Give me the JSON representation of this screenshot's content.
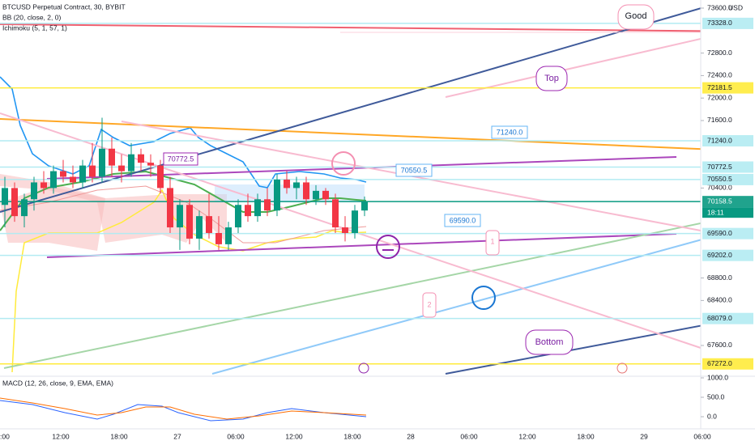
{
  "chart_data": {
    "type": "candlestick",
    "header": [
      "BTCUSD Perpetual Contract, 30, BYBIT",
      "BB (20, close, 2, 0)",
      "Ichimoku (5, 1, 57, 1)"
    ],
    "currency": "USD",
    "up_color": "#089981",
    "down_color": "#f23645",
    "open": [
      70100,
      70400,
      69900,
      70200,
      70500,
      70400,
      70700,
      70600,
      70500,
      70800,
      70600,
      71100,
      70800,
      70700,
      71000,
      70850,
      70800,
      70400,
      69700,
      70100,
      69500,
      69900,
      69600,
      69400,
      69700,
      70100,
      69900,
      70200,
      70000,
      70550,
      70400,
      70500,
      70200,
      70350,
      70200,
      69700,
      69600,
      70000
    ],
    "high": [
      70600,
      70500,
      70300,
      70600,
      70700,
      70800,
      70900,
      70800,
      70900,
      71200,
      71650,
      71300,
      71000,
      71200,
      71100,
      71000,
      70900,
      70600,
      70200,
      70200,
      70000,
      70300,
      69900,
      69800,
      70200,
      70300,
      70300,
      70400,
      70650,
      70700,
      70600,
      70600,
      70450,
      70400,
      70300,
      69900,
      70100,
      70250
    ],
    "low": [
      69700,
      69800,
      69700,
      70000,
      70300,
      70300,
      70500,
      70400,
      70400,
      70500,
      70500,
      70600,
      70500,
      70600,
      70700,
      70600,
      70300,
      69600,
      69300,
      69400,
      69300,
      69500,
      69300,
      69300,
      69600,
      69800,
      69800,
      69900,
      69900,
      70300,
      70200,
      70100,
      70100,
      70100,
      69600,
      69450,
      69500,
      69900
    ],
    "close": [
      70400,
      69900,
      70200,
      70500,
      70400,
      70700,
      70600,
      70500,
      70800,
      70600,
      71100,
      70800,
      70700,
      71000,
      70850,
      70800,
      70400,
      69700,
      70100,
      69500,
      69900,
      69600,
      69400,
      69700,
      70100,
      69900,
      70200,
      70000,
      70550,
      70400,
      70500,
      70200,
      70350,
      70200,
      69700,
      69600,
      70000,
      70158.5
    ],
    "ylim": [
      67096,
      73744
    ],
    "yticks": [
      {
        "value": 73600,
        "label": "73600.0"
      },
      {
        "value": 72800,
        "label": "72800.0"
      },
      {
        "value": 72400,
        "label": "72400.0"
      },
      {
        "value": 72000,
        "label": "72000.0"
      },
      {
        "value": 71600,
        "label": "71600.0"
      },
      {
        "value": 70400,
        "label": "70400.0"
      },
      {
        "value": 68800,
        "label": "68800.0"
      },
      {
        "value": 68400,
        "label": "68400.0"
      },
      {
        "value": 67600,
        "label": "67600.0"
      }
    ],
    "levels": [
      {
        "value": 73328,
        "label": "73328.0",
        "color": "#b2ebf2"
      },
      {
        "value": 72181.5,
        "label": "72181.5",
        "color": "#ffeb3b"
      },
      {
        "value": 71240,
        "label": "71240.0",
        "color": "#b2ebf2"
      },
      {
        "value": 70772.5,
        "label": "70772.5",
        "color": "#b2ebf2"
      },
      {
        "value": 70550.5,
        "label": "70550.5",
        "color": "#b2ebf2"
      },
      {
        "value": 70158.5,
        "label": "70158.5",
        "color": "#089981"
      },
      {
        "value": 69590,
        "label": "69590.0",
        "color": "#b2ebf2"
      },
      {
        "value": 69202,
        "label": "69202.0",
        "color": "#b2ebf2"
      },
      {
        "value": 68079,
        "label": "68079.0",
        "color": "#b2ebf2"
      },
      {
        "value": 67272,
        "label": "67272.0",
        "color": "#ffeb3b"
      }
    ],
    "countdown": "18:11",
    "time_labels": [
      ":00",
      "12:00",
      "18:00",
      "27",
      "06:00",
      "12:00",
      "18:00",
      "28",
      "06:00",
      "12:00",
      "18:00",
      "29",
      "06:00"
    ],
    "annotations": [
      "Good",
      "Top",
      "Bottom",
      "70772.5",
      "71240.0",
      "70550.5",
      "69590.0",
      "1",
      "2"
    ],
    "macd": {
      "title": "MACD (12, 26, close, 9, EMA, EMA)",
      "ylim": [
        -312,
        1042
      ],
      "yticks": [
        {
          "value": 1000,
          "label": "1000.0"
        },
        {
          "value": 500,
          "label": "500.0"
        },
        {
          "value": 0,
          "label": "0.0"
        }
      ]
    }
  }
}
